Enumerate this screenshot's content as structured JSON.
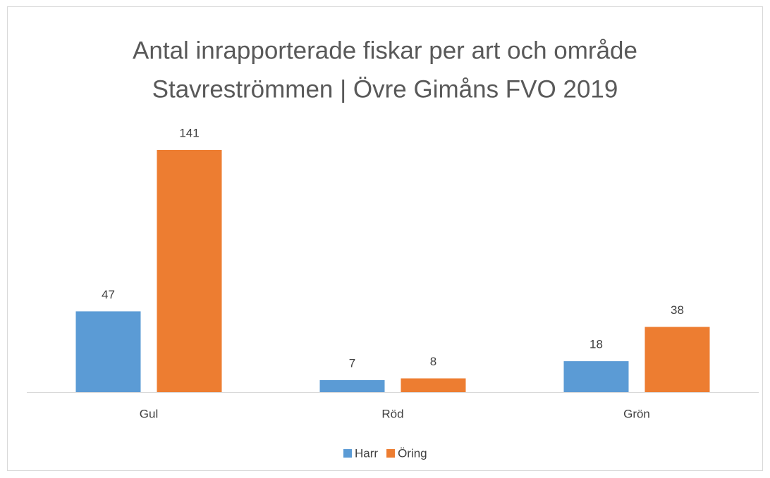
{
  "chart_data": {
    "type": "bar",
    "title": [
      "Antal inrapporterade fiskar per art och område",
      "Stavreströmmen | Övre Gimåns FVO 2019"
    ],
    "categories": [
      "Gul",
      "Röd",
      "Grön"
    ],
    "series": [
      {
        "name": "Harr",
        "color": "#5b9bd5",
        "values": [
          47,
          7,
          18
        ]
      },
      {
        "name": "Öring",
        "color": "#ed7d31",
        "values": [
          141,
          8,
          38
        ]
      }
    ],
    "legend": "bottom"
  }
}
